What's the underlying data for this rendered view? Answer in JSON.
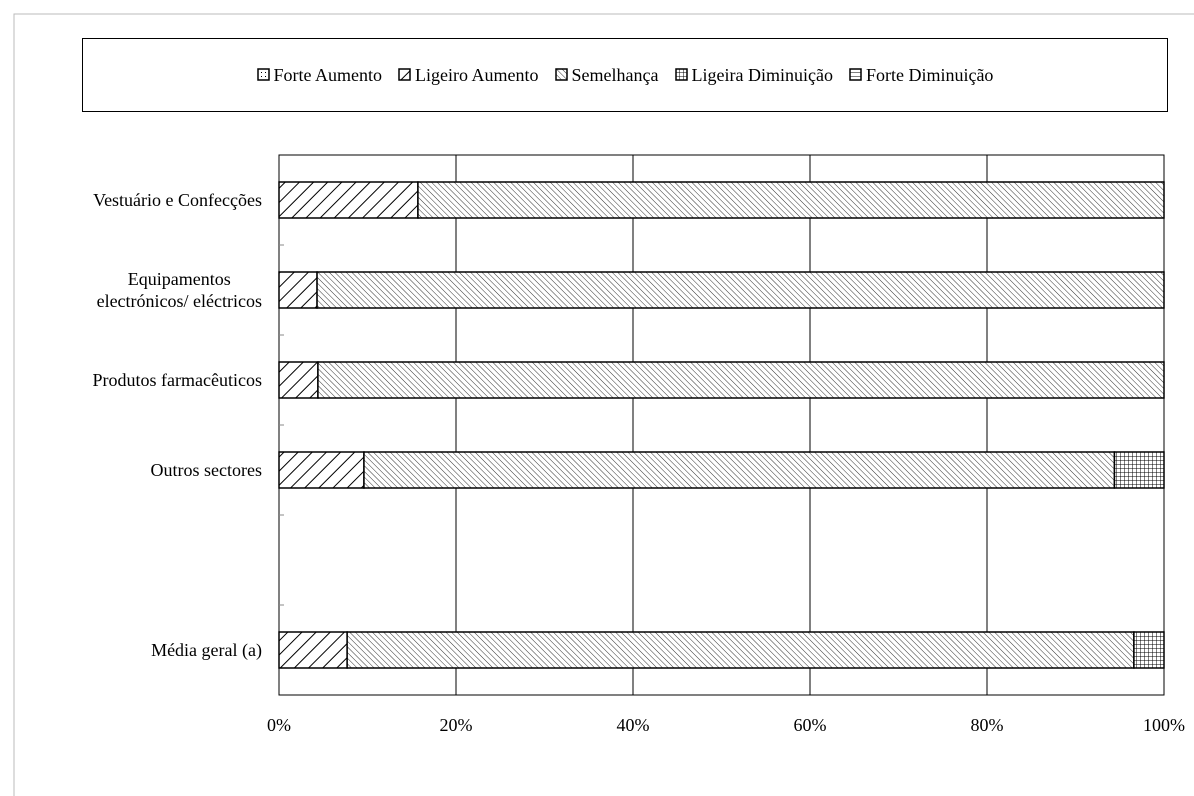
{
  "chart_data": {
    "type": "stacked-bar-horizontal",
    "categories": [
      "Vestuário e Confecções",
      "Equipamentos\nelectrónicos/ eléctricos",
      "Produtos farmacêuticos",
      "Outros sectores",
      null,
      "Média geral (a)"
    ],
    "series": [
      {
        "name": "Forte Aumento",
        "color": "#000000",
        "values": [
          0,
          0,
          0,
          0,
          null,
          0
        ]
      },
      {
        "name": "Ligeiro Aumento",
        "color": "#000000",
        "values": [
          15.7,
          4.3,
          4.4,
          9.6,
          null,
          7.7
        ]
      },
      {
        "name": "Semelhança",
        "color": "#000000",
        "values": [
          84.3,
          95.7,
          95.6,
          84.8,
          null,
          88.9
        ]
      },
      {
        "name": "Ligeira Diminuição",
        "color": "#000000",
        "values": [
          0,
          0,
          0,
          5.6,
          null,
          3.4
        ]
      },
      {
        "name": "Forte Diminuição",
        "color": "#000000",
        "values": [
          0,
          0,
          0,
          0,
          null,
          0
        ]
      }
    ],
    "xlim": [
      0,
      100
    ],
    "xticks": [
      {
        "value": 0,
        "label": "0%"
      },
      {
        "value": 20,
        "label": "20%"
      },
      {
        "value": 40,
        "label": "40%"
      },
      {
        "value": 60,
        "label": "60%"
      },
      {
        "value": 80,
        "label": "80%"
      },
      {
        "value": 100,
        "label": "100%"
      }
    ],
    "grid": true,
    "legend": "top"
  }
}
